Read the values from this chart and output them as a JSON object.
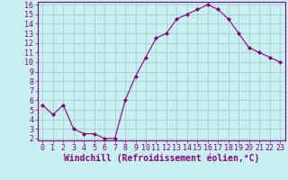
{
  "x": [
    0,
    1,
    2,
    3,
    4,
    5,
    6,
    7,
    8,
    9,
    10,
    11,
    12,
    13,
    14,
    15,
    16,
    17,
    18,
    19,
    20,
    21,
    22,
    23
  ],
  "y": [
    5.5,
    4.5,
    5.5,
    3.0,
    2.5,
    2.5,
    2.0,
    2.0,
    6.0,
    8.5,
    10.5,
    12.5,
    13.0,
    14.5,
    15.0,
    15.5,
    16.0,
    15.5,
    14.5,
    13.0,
    11.5,
    11.0,
    10.5,
    10.0
  ],
  "line_color": "#880088",
  "marker": "D",
  "marker_size": 2.0,
  "background_color": "#c8f0f0",
  "grid_color": "#a0c8c8",
  "axis_color": "#880088",
  "tick_color": "#880088",
  "xlabel": "Windchill (Refroidissement éolien,°C)",
  "xlabel_fontsize": 7,
  "ylim_min": 2,
  "ylim_max": 16,
  "xlim_min": 0,
  "xlim_max": 23,
  "yticks": [
    2,
    3,
    4,
    5,
    6,
    7,
    8,
    9,
    10,
    11,
    12,
    13,
    14,
    15,
    16
  ],
  "xticks": [
    0,
    1,
    2,
    3,
    4,
    5,
    6,
    7,
    8,
    9,
    10,
    11,
    12,
    13,
    14,
    15,
    16,
    17,
    18,
    19,
    20,
    21,
    22,
    23
  ],
  "tick_fontsize": 6
}
